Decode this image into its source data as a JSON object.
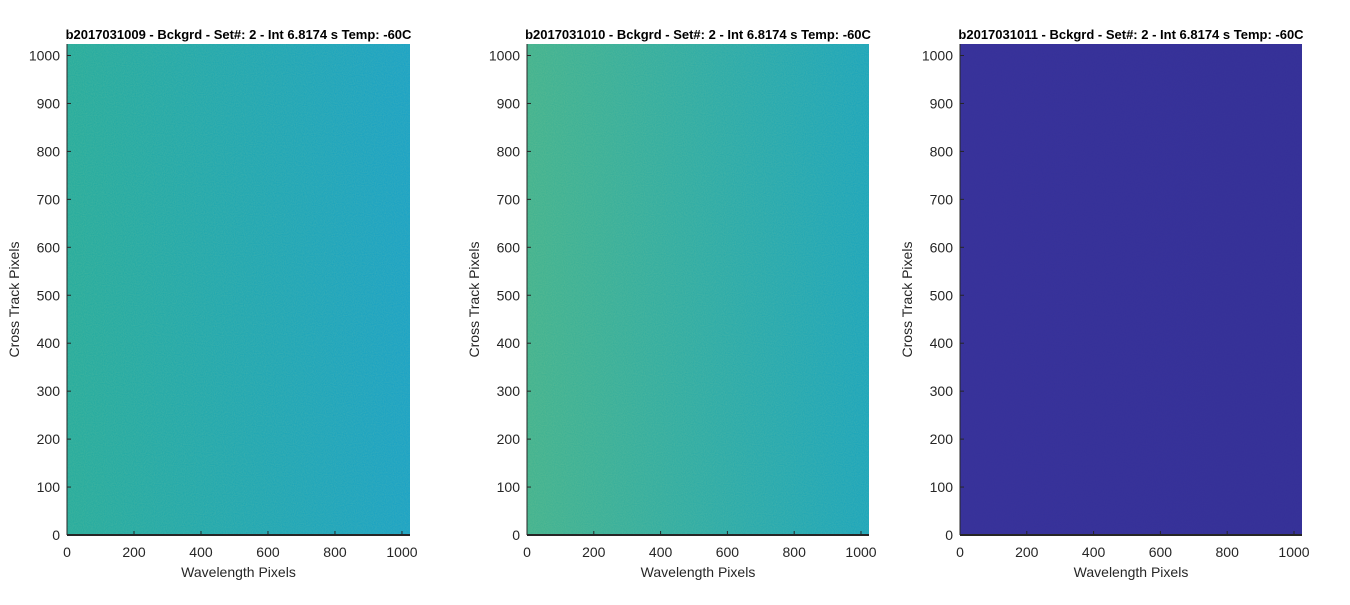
{
  "chart_data": [
    {
      "type": "heatmap",
      "title": "b2017031009 - Bckgrd - Set#: 2 - Int 6.8174 s Temp: -60C",
      "xlabel": "Wavelength Pixels",
      "ylabel": "Cross Track Pixels",
      "xlim": [
        0,
        1024
      ],
      "ylim": [
        0,
        1024
      ],
      "xticks": [
        0,
        200,
        400,
        600,
        800,
        1000
      ],
      "yticks": [
        0,
        100,
        200,
        300,
        400,
        500,
        600,
        700,
        800,
        900,
        1000
      ],
      "colormap": "parula",
      "color_left": "#21AA9E",
      "color_right": "#14A0C8",
      "grid": false
    },
    {
      "type": "heatmap",
      "title": "b2017031010 - Bckgrd - Set#: 2 - Int 6.8174 s Temp: -60C",
      "xlabel": "Wavelength Pixels",
      "ylabel": "Cross Track Pixels",
      "xlim": [
        0,
        1024
      ],
      "ylim": [
        0,
        1024
      ],
      "xticks": [
        0,
        200,
        400,
        600,
        800,
        1000
      ],
      "yticks": [
        0,
        100,
        200,
        300,
        400,
        500,
        600,
        700,
        800,
        900,
        1000
      ],
      "colormap": "parula",
      "color_left": "#3DB190",
      "color_right": "#15A3BE",
      "grid": false
    },
    {
      "type": "heatmap",
      "title": "b2017031011 - Bckgrd - Set#: 2 - Int 6.8174 s Temp: -60C",
      "xlabel": "Wavelength Pixels",
      "ylabel": "Cross Track Pixels",
      "xlim": [
        0,
        1024
      ],
      "ylim": [
        0,
        1024
      ],
      "xticks": [
        0,
        200,
        400,
        600,
        800,
        1000
      ],
      "yticks": [
        0,
        100,
        200,
        300,
        400,
        500,
        600,
        700,
        800,
        900,
        1000
      ],
      "colormap": "parula",
      "color_left": "#36309A",
      "color_right": "#342F98",
      "grid": false
    }
  ]
}
